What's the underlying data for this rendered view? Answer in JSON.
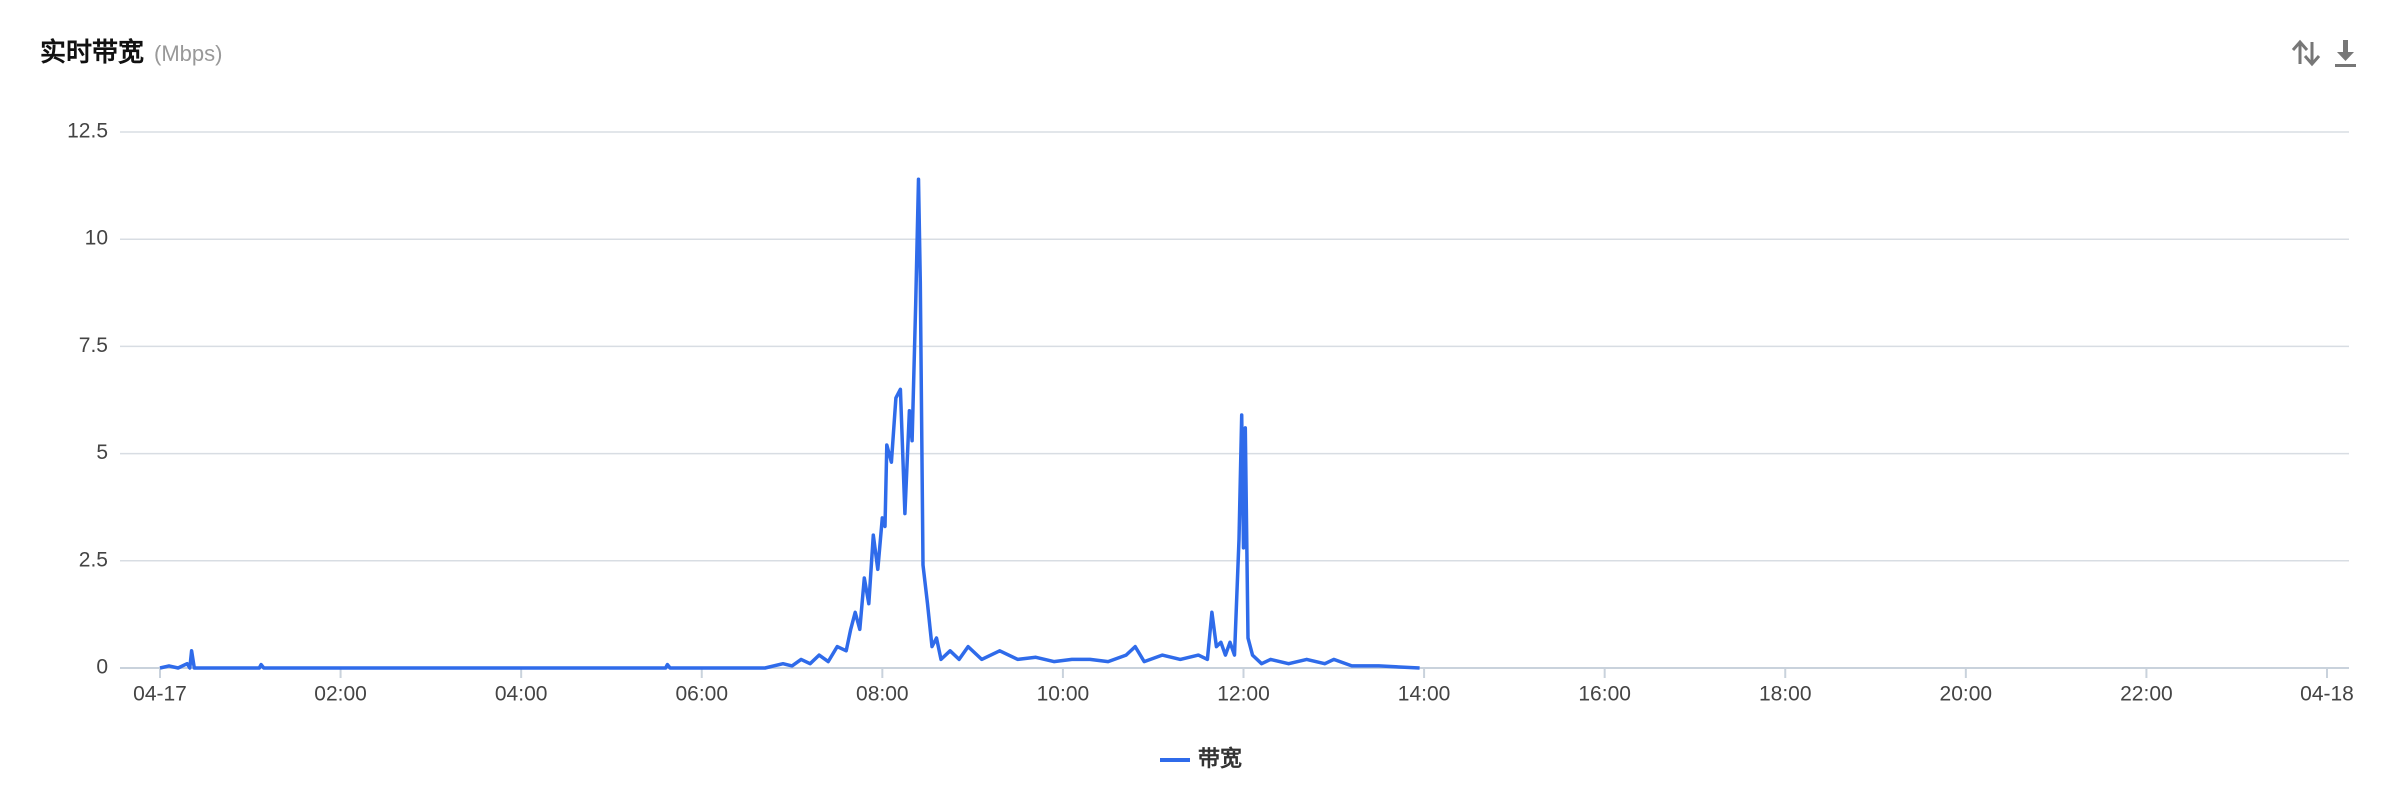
{
  "chart_data": {
    "type": "line",
    "title": "实时带宽",
    "subtitle": "(Mbps)",
    "x": [
      0,
      0.1,
      0.2,
      0.3,
      0.33,
      0.35,
      0.38,
      1.1,
      1.12,
      1.15,
      5.6,
      5.62,
      5.65,
      6.7,
      6.9,
      7.0,
      7.1,
      7.2,
      7.3,
      7.4,
      7.5,
      7.6,
      7.65,
      7.7,
      7.75,
      7.8,
      7.85,
      7.9,
      7.95,
      8.0,
      8.03,
      8.05,
      8.1,
      8.15,
      8.2,
      8.25,
      8.3,
      8.33,
      8.37,
      8.4,
      8.42,
      8.45,
      8.5,
      8.55,
      8.6,
      8.65,
      8.75,
      8.85,
      8.95,
      9.1,
      9.3,
      9.5,
      9.7,
      9.9,
      10.1,
      10.3,
      10.5,
      10.7,
      10.8,
      10.9,
      11.1,
      11.3,
      11.5,
      11.6,
      11.65,
      11.7,
      11.75,
      11.8,
      11.85,
      11.9,
      11.95,
      11.98,
      12.0,
      12.02,
      12.05,
      12.1,
      12.2,
      12.3,
      12.5,
      12.7,
      12.9,
      13.0,
      13.2,
      13.5,
      13.95
    ],
    "series": [
      {
        "name": "带宽",
        "color": "#2f6bea",
        "values": [
          0,
          0.05,
          0,
          0.1,
          0,
          0.4,
          0,
          0,
          0.08,
          0,
          0,
          0.08,
          0,
          0,
          0.1,
          0.05,
          0.2,
          0.1,
          0.3,
          0.15,
          0.5,
          0.4,
          0.9,
          1.3,
          0.9,
          2.1,
          1.5,
          3.1,
          2.3,
          3.5,
          3.3,
          5.2,
          4.8,
          6.3,
          6.5,
          3.6,
          6.0,
          5.3,
          8.5,
          11.4,
          9.0,
          2.4,
          1.5,
          0.5,
          0.7,
          0.2,
          0.4,
          0.2,
          0.5,
          0.2,
          0.4,
          0.2,
          0.25,
          0.15,
          0.2,
          0.2,
          0.15,
          0.3,
          0.5,
          0.15,
          0.3,
          0.2,
          0.3,
          0.2,
          1.3,
          0.5,
          0.6,
          0.3,
          0.6,
          0.3,
          3.0,
          5.9,
          2.8,
          5.6,
          0.7,
          0.3,
          0.1,
          0.2,
          0.1,
          0.2,
          0.1,
          0.2,
          0.05,
          0.05,
          0
        ]
      }
    ],
    "xlim": [
      0,
      24
    ],
    "xticks": [
      {
        "value": 0,
        "label": "04-17"
      },
      {
        "value": 2,
        "label": "02:00"
      },
      {
        "value": 4,
        "label": "04:00"
      },
      {
        "value": 6,
        "label": "06:00"
      },
      {
        "value": 8,
        "label": "08:00"
      },
      {
        "value": 10,
        "label": "10:00"
      },
      {
        "value": 12,
        "label": "12:00"
      },
      {
        "value": 14,
        "label": "14:00"
      },
      {
        "value": 16,
        "label": "16:00"
      },
      {
        "value": 18,
        "label": "18:00"
      },
      {
        "value": 20,
        "label": "20:00"
      },
      {
        "value": 22,
        "label": "22:00"
      },
      {
        "value": 24,
        "label": "04-18"
      }
    ],
    "ylim": [
      0,
      12.5
    ],
    "yticks": [
      0,
      2.5,
      5,
      7.5,
      10,
      12.5
    ],
    "grid": true
  }
}
